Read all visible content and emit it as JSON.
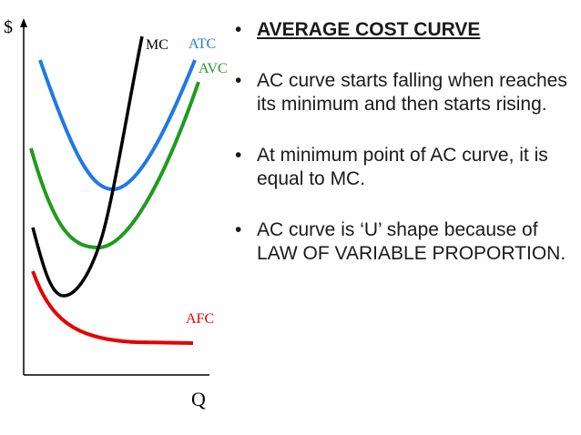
{
  "chart_data": {
    "type": "line",
    "ylabel": "$",
    "xlabel": "Q",
    "grid": false,
    "series": [
      {
        "name": "MC",
        "color": "#000000"
      },
      {
        "name": "ATC",
        "color": "#1f78e6"
      },
      {
        "name": "AVC",
        "color": "#1e9b1e"
      },
      {
        "name": "AFC",
        "color": "#e60000"
      }
    ]
  },
  "bullets": [
    "AVERAGE COST CURVE",
    "AC curve starts falling when reaches its minimum and then starts rising.",
    "At minimum point of AC curve, it is equal to MC.",
    "AC curve is ‘U’ shape because of LAW OF VARIABLE PROPORTION."
  ],
  "colors": {
    "text": "#1a1a1a",
    "axis": "#000000"
  }
}
